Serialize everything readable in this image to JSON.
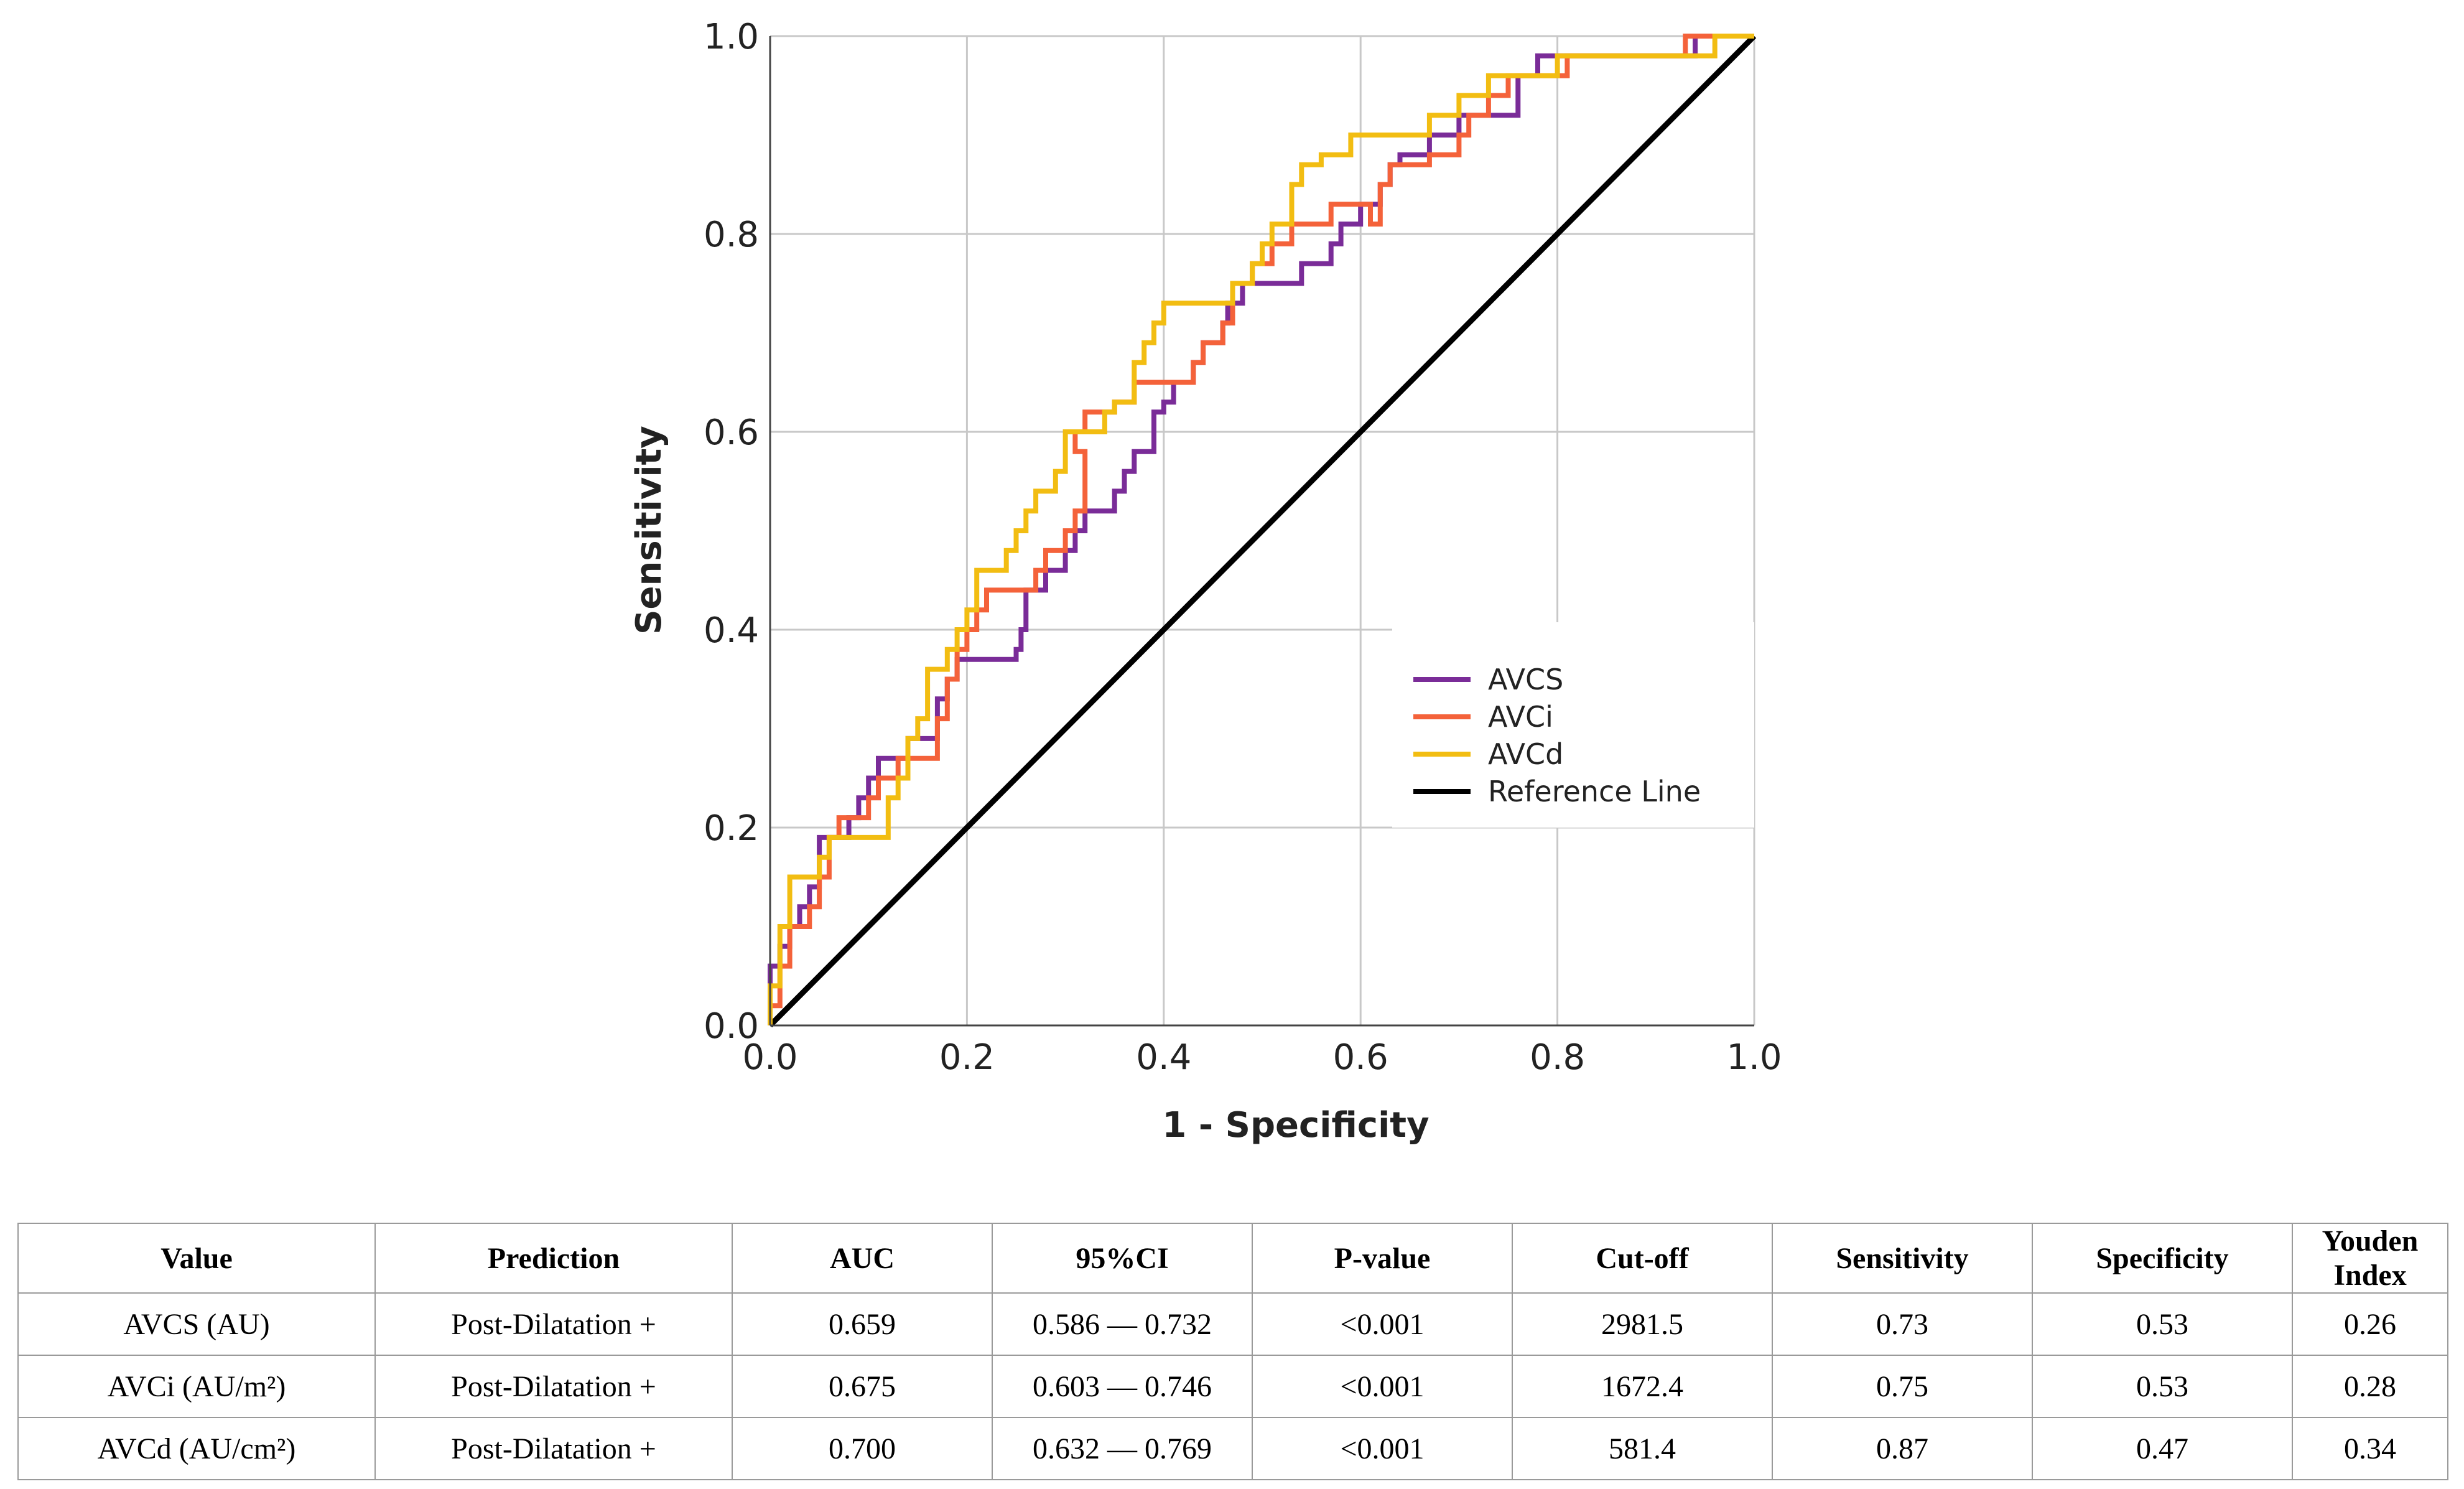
{
  "chart_data": {
    "type": "line",
    "title": "",
    "xlabel": "1 - Specificity",
    "ylabel": "Sensitivity",
    "xlim": [
      0,
      1
    ],
    "ylim": [
      0,
      1
    ],
    "grid": true,
    "x_ticks": [
      "0.0",
      "0.2",
      "0.4",
      "0.6",
      "0.8",
      "1.0"
    ],
    "y_ticks": [
      "0.0",
      "0.2",
      "0.4",
      "0.6",
      "0.8",
      "1.0"
    ],
    "legend_position": "lower-right",
    "series": [
      {
        "name": "AVCS",
        "color": "#7a2c98",
        "points": [
          [
            0,
            0
          ],
          [
            0,
            0.06
          ],
          [
            0.01,
            0.06
          ],
          [
            0.01,
            0.08
          ],
          [
            0.02,
            0.08
          ],
          [
            0.02,
            0.1
          ],
          [
            0.03,
            0.1
          ],
          [
            0.03,
            0.12
          ],
          [
            0.04,
            0.12
          ],
          [
            0.04,
            0.14
          ],
          [
            0.05,
            0.14
          ],
          [
            0.05,
            0.19
          ],
          [
            0.08,
            0.19
          ],
          [
            0.08,
            0.21
          ],
          [
            0.09,
            0.21
          ],
          [
            0.09,
            0.23
          ],
          [
            0.1,
            0.23
          ],
          [
            0.1,
            0.25
          ],
          [
            0.11,
            0.25
          ],
          [
            0.11,
            0.27
          ],
          [
            0.14,
            0.27
          ],
          [
            0.14,
            0.29
          ],
          [
            0.17,
            0.29
          ],
          [
            0.17,
            0.33
          ],
          [
            0.18,
            0.33
          ],
          [
            0.18,
            0.35
          ],
          [
            0.19,
            0.35
          ],
          [
            0.19,
            0.37
          ],
          [
            0.25,
            0.37
          ],
          [
            0.25,
            0.38
          ],
          [
            0.255,
            0.38
          ],
          [
            0.255,
            0.4
          ],
          [
            0.26,
            0.4
          ],
          [
            0.26,
            0.44
          ],
          [
            0.28,
            0.44
          ],
          [
            0.28,
            0.46
          ],
          [
            0.3,
            0.46
          ],
          [
            0.3,
            0.48
          ],
          [
            0.31,
            0.48
          ],
          [
            0.31,
            0.5
          ],
          [
            0.32,
            0.5
          ],
          [
            0.32,
            0.52
          ],
          [
            0.35,
            0.52
          ],
          [
            0.35,
            0.54
          ],
          [
            0.36,
            0.54
          ],
          [
            0.36,
            0.56
          ],
          [
            0.37,
            0.56
          ],
          [
            0.37,
            0.58
          ],
          [
            0.39,
            0.58
          ],
          [
            0.39,
            0.62
          ],
          [
            0.4,
            0.62
          ],
          [
            0.4,
            0.63
          ],
          [
            0.41,
            0.63
          ],
          [
            0.41,
            0.65
          ],
          [
            0.43,
            0.65
          ],
          [
            0.43,
            0.67
          ],
          [
            0.44,
            0.67
          ],
          [
            0.44,
            0.69
          ],
          [
            0.46,
            0.69
          ],
          [
            0.46,
            0.71
          ],
          [
            0.465,
            0.71
          ],
          [
            0.465,
            0.73
          ],
          [
            0.48,
            0.73
          ],
          [
            0.48,
            0.75
          ],
          [
            0.54,
            0.75
          ],
          [
            0.54,
            0.77
          ],
          [
            0.57,
            0.77
          ],
          [
            0.57,
            0.79
          ],
          [
            0.58,
            0.79
          ],
          [
            0.58,
            0.81
          ],
          [
            0.6,
            0.81
          ],
          [
            0.6,
            0.83
          ],
          [
            0.62,
            0.83
          ],
          [
            0.62,
            0.85
          ],
          [
            0.63,
            0.85
          ],
          [
            0.63,
            0.87
          ],
          [
            0.64,
            0.87
          ],
          [
            0.64,
            0.88
          ],
          [
            0.67,
            0.88
          ],
          [
            0.67,
            0.9
          ],
          [
            0.7,
            0.9
          ],
          [
            0.7,
            0.92
          ],
          [
            0.76,
            0.92
          ],
          [
            0.76,
            0.96
          ],
          [
            0.78,
            0.96
          ],
          [
            0.78,
            0.98
          ],
          [
            0.94,
            0.98
          ],
          [
            0.94,
            1.0
          ],
          [
            1.0,
            1.0
          ]
        ]
      },
      {
        "name": "AVCi",
        "color": "#f4623a",
        "points": [
          [
            0,
            0
          ],
          [
            0,
            0.02
          ],
          [
            0.01,
            0.02
          ],
          [
            0.01,
            0.06
          ],
          [
            0.02,
            0.06
          ],
          [
            0.02,
            0.1
          ],
          [
            0.04,
            0.1
          ],
          [
            0.04,
            0.12
          ],
          [
            0.05,
            0.12
          ],
          [
            0.05,
            0.15
          ],
          [
            0.06,
            0.15
          ],
          [
            0.06,
            0.19
          ],
          [
            0.07,
            0.19
          ],
          [
            0.07,
            0.21
          ],
          [
            0.1,
            0.21
          ],
          [
            0.1,
            0.23
          ],
          [
            0.11,
            0.23
          ],
          [
            0.11,
            0.25
          ],
          [
            0.13,
            0.25
          ],
          [
            0.13,
            0.27
          ],
          [
            0.17,
            0.27
          ],
          [
            0.17,
            0.31
          ],
          [
            0.18,
            0.31
          ],
          [
            0.18,
            0.35
          ],
          [
            0.19,
            0.35
          ],
          [
            0.19,
            0.38
          ],
          [
            0.2,
            0.38
          ],
          [
            0.2,
            0.4
          ],
          [
            0.21,
            0.4
          ],
          [
            0.21,
            0.42
          ],
          [
            0.22,
            0.42
          ],
          [
            0.22,
            0.44
          ],
          [
            0.27,
            0.44
          ],
          [
            0.27,
            0.46
          ],
          [
            0.28,
            0.46
          ],
          [
            0.28,
            0.48
          ],
          [
            0.3,
            0.48
          ],
          [
            0.3,
            0.5
          ],
          [
            0.31,
            0.5
          ],
          [
            0.31,
            0.52
          ],
          [
            0.32,
            0.52
          ],
          [
            0.32,
            0.58
          ],
          [
            0.31,
            0.58
          ],
          [
            0.31,
            0.6
          ],
          [
            0.32,
            0.6
          ],
          [
            0.32,
            0.62
          ],
          [
            0.35,
            0.62
          ],
          [
            0.35,
            0.63
          ],
          [
            0.37,
            0.63
          ],
          [
            0.37,
            0.65
          ],
          [
            0.43,
            0.65
          ],
          [
            0.43,
            0.67
          ],
          [
            0.44,
            0.67
          ],
          [
            0.44,
            0.69
          ],
          [
            0.46,
            0.69
          ],
          [
            0.46,
            0.71
          ],
          [
            0.47,
            0.71
          ],
          [
            0.47,
            0.75
          ],
          [
            0.49,
            0.75
          ],
          [
            0.49,
            0.77
          ],
          [
            0.51,
            0.77
          ],
          [
            0.51,
            0.79
          ],
          [
            0.53,
            0.79
          ],
          [
            0.53,
            0.81
          ],
          [
            0.57,
            0.81
          ],
          [
            0.57,
            0.83
          ],
          [
            0.61,
            0.83
          ],
          [
            0.61,
            0.81
          ],
          [
            0.62,
            0.81
          ],
          [
            0.62,
            0.85
          ],
          [
            0.63,
            0.85
          ],
          [
            0.63,
            0.87
          ],
          [
            0.67,
            0.87
          ],
          [
            0.67,
            0.88
          ],
          [
            0.7,
            0.88
          ],
          [
            0.7,
            0.9
          ],
          [
            0.71,
            0.9
          ],
          [
            0.71,
            0.92
          ],
          [
            0.73,
            0.92
          ],
          [
            0.73,
            0.94
          ],
          [
            0.75,
            0.94
          ],
          [
            0.75,
            0.96
          ],
          [
            0.81,
            0.96
          ],
          [
            0.81,
            0.98
          ],
          [
            0.93,
            0.98
          ],
          [
            0.93,
            1.0
          ],
          [
            1.0,
            1.0
          ]
        ]
      },
      {
        "name": "AVCd",
        "color": "#f2bd12",
        "points": [
          [
            0,
            0
          ],
          [
            0,
            0.04
          ],
          [
            0.01,
            0.04
          ],
          [
            0.01,
            0.1
          ],
          [
            0.02,
            0.1
          ],
          [
            0.02,
            0.15
          ],
          [
            0.05,
            0.15
          ],
          [
            0.05,
            0.17
          ],
          [
            0.06,
            0.17
          ],
          [
            0.06,
            0.19
          ],
          [
            0.12,
            0.19
          ],
          [
            0.12,
            0.23
          ],
          [
            0.13,
            0.23
          ],
          [
            0.13,
            0.25
          ],
          [
            0.14,
            0.25
          ],
          [
            0.14,
            0.29
          ],
          [
            0.15,
            0.29
          ],
          [
            0.15,
            0.31
          ],
          [
            0.16,
            0.31
          ],
          [
            0.16,
            0.36
          ],
          [
            0.18,
            0.36
          ],
          [
            0.18,
            0.38
          ],
          [
            0.19,
            0.38
          ],
          [
            0.19,
            0.4
          ],
          [
            0.2,
            0.4
          ],
          [
            0.2,
            0.42
          ],
          [
            0.21,
            0.42
          ],
          [
            0.21,
            0.46
          ],
          [
            0.24,
            0.46
          ],
          [
            0.24,
            0.48
          ],
          [
            0.25,
            0.48
          ],
          [
            0.25,
            0.5
          ],
          [
            0.26,
            0.5
          ],
          [
            0.26,
            0.52
          ],
          [
            0.27,
            0.52
          ],
          [
            0.27,
            0.54
          ],
          [
            0.29,
            0.54
          ],
          [
            0.29,
            0.56
          ],
          [
            0.3,
            0.56
          ],
          [
            0.3,
            0.6
          ],
          [
            0.34,
            0.6
          ],
          [
            0.34,
            0.62
          ],
          [
            0.35,
            0.62
          ],
          [
            0.35,
            0.63
          ],
          [
            0.37,
            0.63
          ],
          [
            0.37,
            0.67
          ],
          [
            0.38,
            0.67
          ],
          [
            0.38,
            0.69
          ],
          [
            0.39,
            0.69
          ],
          [
            0.39,
            0.71
          ],
          [
            0.4,
            0.71
          ],
          [
            0.4,
            0.73
          ],
          [
            0.47,
            0.73
          ],
          [
            0.47,
            0.75
          ],
          [
            0.49,
            0.75
          ],
          [
            0.49,
            0.77
          ],
          [
            0.5,
            0.77
          ],
          [
            0.5,
            0.79
          ],
          [
            0.51,
            0.79
          ],
          [
            0.51,
            0.81
          ],
          [
            0.53,
            0.81
          ],
          [
            0.53,
            0.85
          ],
          [
            0.54,
            0.85
          ],
          [
            0.54,
            0.87
          ],
          [
            0.56,
            0.87
          ],
          [
            0.56,
            0.88
          ],
          [
            0.59,
            0.88
          ],
          [
            0.59,
            0.9
          ],
          [
            0.67,
            0.9
          ],
          [
            0.67,
            0.92
          ],
          [
            0.7,
            0.92
          ],
          [
            0.7,
            0.94
          ],
          [
            0.73,
            0.94
          ],
          [
            0.73,
            0.96
          ],
          [
            0.8,
            0.96
          ],
          [
            0.8,
            0.98
          ],
          [
            0.96,
            0.98
          ],
          [
            0.96,
            1.0
          ],
          [
            1.0,
            1.0
          ]
        ]
      },
      {
        "name": "Reference Line",
        "color": "#000000",
        "points": [
          [
            0,
            0
          ],
          [
            1,
            1
          ]
        ]
      }
    ]
  },
  "table": {
    "headers": [
      "Value",
      "Prediction",
      "AUC",
      "95%CI",
      "P-value",
      "Cut-off",
      "Sensitivity",
      "Specificity",
      "Youden Index"
    ],
    "rows": [
      {
        "value": "AVCS (AU)",
        "prediction": "Post-Dilatation +",
        "auc": "0.659",
        "ci": "0.586 — 0.732",
        "p": "<0.001",
        "cutoff": "2981.5",
        "sens": "0.73",
        "spec": "0.53",
        "youden": "0.26"
      },
      {
        "value": "AVCi (AU/m²)",
        "prediction": "Post-Dilatation +",
        "auc": "0.675",
        "ci": "0.603 — 0.746",
        "p": "<0.001",
        "cutoff": "1672.4",
        "sens": "0.75",
        "spec": "0.53",
        "youden": "0.28"
      },
      {
        "value": "AVCd (AU/cm²)",
        "prediction": "Post-Dilatation +",
        "auc": "0.700",
        "ci": "0.632 — 0.769",
        "p": "<0.001",
        "cutoff": "581.4",
        "sens": "0.87",
        "spec": "0.47",
        "youden": "0.34"
      }
    ]
  }
}
